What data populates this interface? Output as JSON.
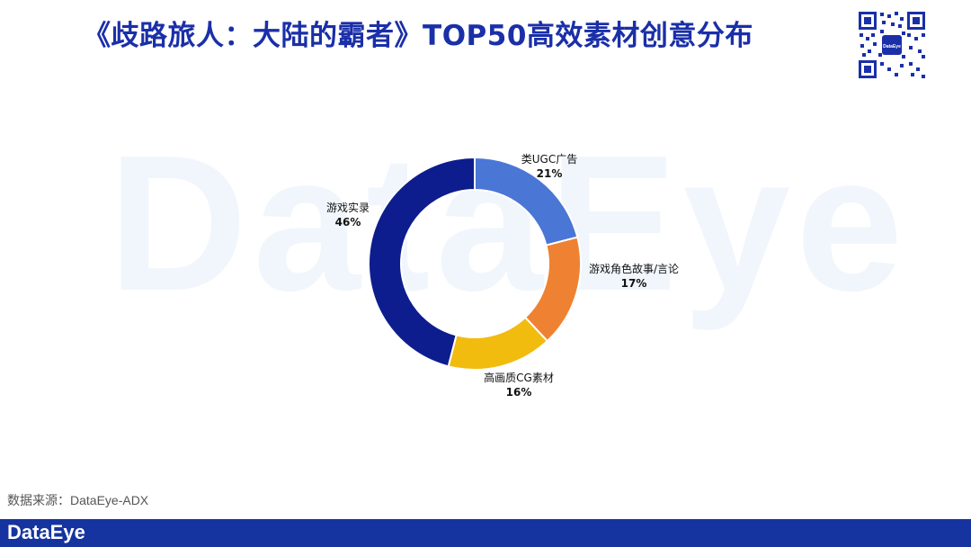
{
  "title": "《歧路旅人：大陆的霸者》TOP50高效素材创意分布",
  "watermark_text": "DataEye",
  "qr_logo_text": "DataEye",
  "source": "数据来源：DataEye-ADX",
  "footer_logo": "DataEye",
  "chart_data": {
    "type": "pie",
    "donut": true,
    "title": "",
    "categories": [
      "类UGC广告",
      "游戏角色故事/言论",
      "高画质CG素材",
      "游戏实录"
    ],
    "values": [
      21,
      17,
      16,
      46
    ],
    "labels": [
      "21%",
      "17%",
      "16%",
      "46%"
    ],
    "colors": [
      "#4a76d6",
      "#ef8232",
      "#f2bc0f",
      "#0d1d8e"
    ],
    "legend": "none",
    "start_angle": "top",
    "direction": "clockwise"
  }
}
